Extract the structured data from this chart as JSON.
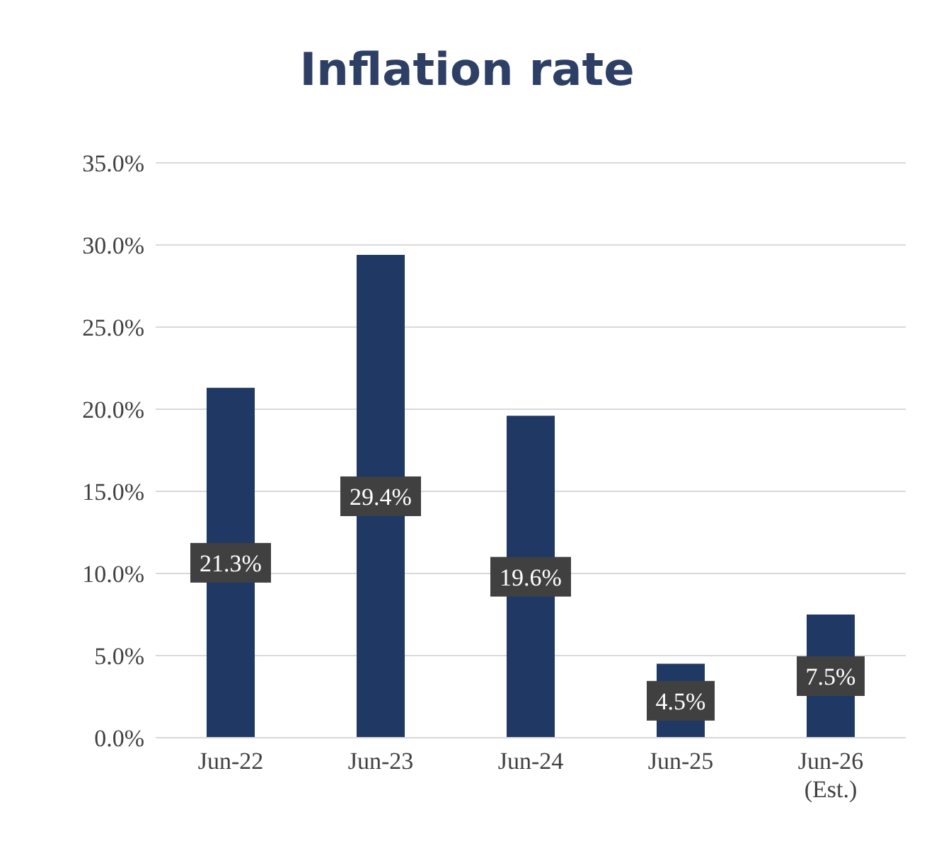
{
  "chart_data": {
    "type": "bar",
    "title": "Inflation rate",
    "categories": [
      "Jun-22",
      "Jun-23",
      "Jun-24",
      "Jun-25",
      "Jun-26 (Est.)"
    ],
    "values": [
      21.3,
      29.4,
      19.6,
      4.5,
      7.5
    ],
    "value_labels": [
      "21.3%",
      "29.4%",
      "19.6%",
      "4.5%",
      "7.5%"
    ],
    "color": "#1f3864",
    "ylim": [
      0,
      35
    ],
    "yticks": [
      {
        "value": 0,
        "label": "0.0%"
      },
      {
        "value": 5,
        "label": "5.0%"
      },
      {
        "value": 10,
        "label": "10.0%"
      },
      {
        "value": 15,
        "label": "15.0%"
      },
      {
        "value": 20,
        "label": "20.0%"
      },
      {
        "value": 25,
        "label": "25.0%"
      },
      {
        "value": 30,
        "label": "30.0%"
      },
      {
        "value": 35,
        "label": "35.0%"
      }
    ],
    "grid": "y"
  }
}
